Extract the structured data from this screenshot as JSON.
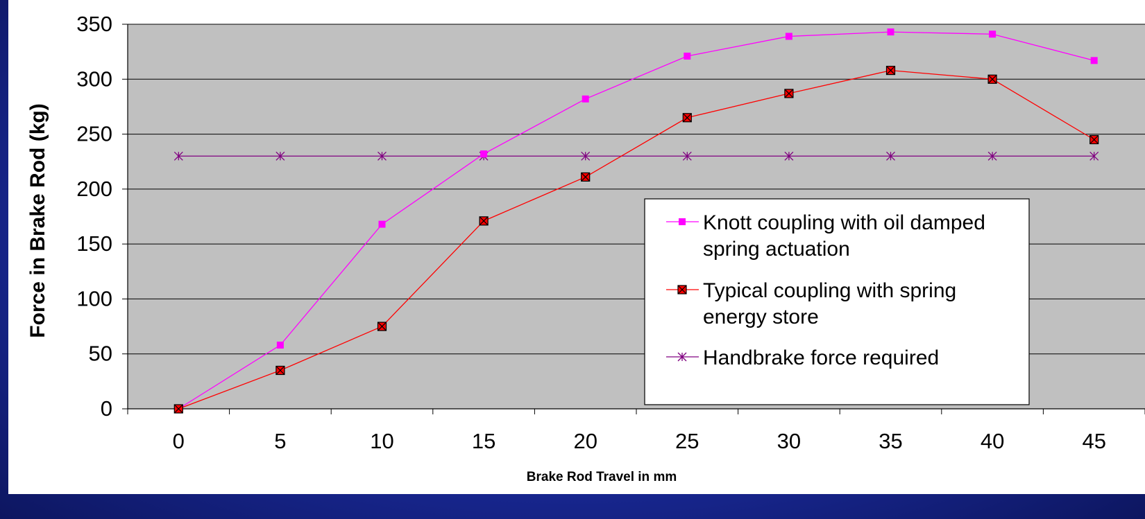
{
  "chart_data": {
    "type": "line",
    "xlabel": "Brake Rod Travel in mm",
    "ylabel": "Force in Brake Rod (kg)",
    "x": [
      0,
      5,
      10,
      15,
      20,
      25,
      30,
      35,
      40,
      45
    ],
    "ylim": [
      0,
      350
    ],
    "yticks": [
      0,
      50,
      100,
      150,
      200,
      250,
      300,
      350
    ],
    "grid": true,
    "legend_position": "bottom-right (inside plot)",
    "plot_background": "#c0c0c0",
    "series": [
      {
        "name": "Knott coupling with oil damped spring actuation",
        "values": [
          0,
          58,
          168,
          232,
          282,
          321,
          339,
          343,
          341,
          317
        ],
        "color": "#ff00ff",
        "marker": "square"
      },
      {
        "name": "Typical coupling with spring energy store",
        "values": [
          0,
          35,
          75,
          171,
          211,
          265,
          287,
          308,
          300,
          245
        ],
        "color": "#ff0000",
        "marker": "square-x"
      },
      {
        "name": "Handbrake force required",
        "values": [
          230,
          230,
          230,
          230,
          230,
          230,
          230,
          230,
          230,
          230
        ],
        "color": "#800080",
        "marker": "asterisk"
      }
    ]
  }
}
